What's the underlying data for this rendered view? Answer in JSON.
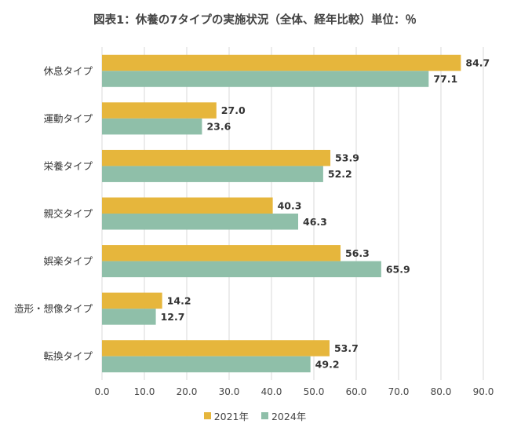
{
  "colors": {
    "series_2021": "#e6b63c",
    "series_2024": "#8fbfa9",
    "grid": "#d9d9d9"
  },
  "chart_data": {
    "type": "bar",
    "orientation": "horizontal",
    "title": "図表1：休養の7タイプの実施状況（全体、経年比較）単位：％",
    "categories": [
      "休息タイプ",
      "運動タイプ",
      "栄養タイプ",
      "親交タイプ",
      "娯楽タイプ",
      "造形・想像タイプ",
      "転換タイプ"
    ],
    "series": [
      {
        "name": "2021年",
        "values": [
          84.7,
          27.0,
          53.9,
          40.3,
          56.3,
          14.2,
          53.7
        ],
        "labels": [
          "84.7",
          "27.0",
          "53.9",
          "40.3",
          "56.3",
          "14.2",
          "53.7"
        ]
      },
      {
        "name": "2024年",
        "values": [
          77.1,
          23.6,
          52.2,
          46.3,
          65.9,
          12.7,
          49.2
        ],
        "labels": [
          "77.1",
          "23.6",
          "52.2",
          "46.3",
          "65.9",
          "12.7",
          "49.2"
        ]
      }
    ],
    "xlim": [
      0,
      90
    ],
    "xticks": [
      "0.0",
      "10.0",
      "20.0",
      "30.0",
      "40.0",
      "50.0",
      "60.0",
      "70.0",
      "80.0",
      "90.0"
    ],
    "grid": true,
    "legend_position": "bottom"
  }
}
